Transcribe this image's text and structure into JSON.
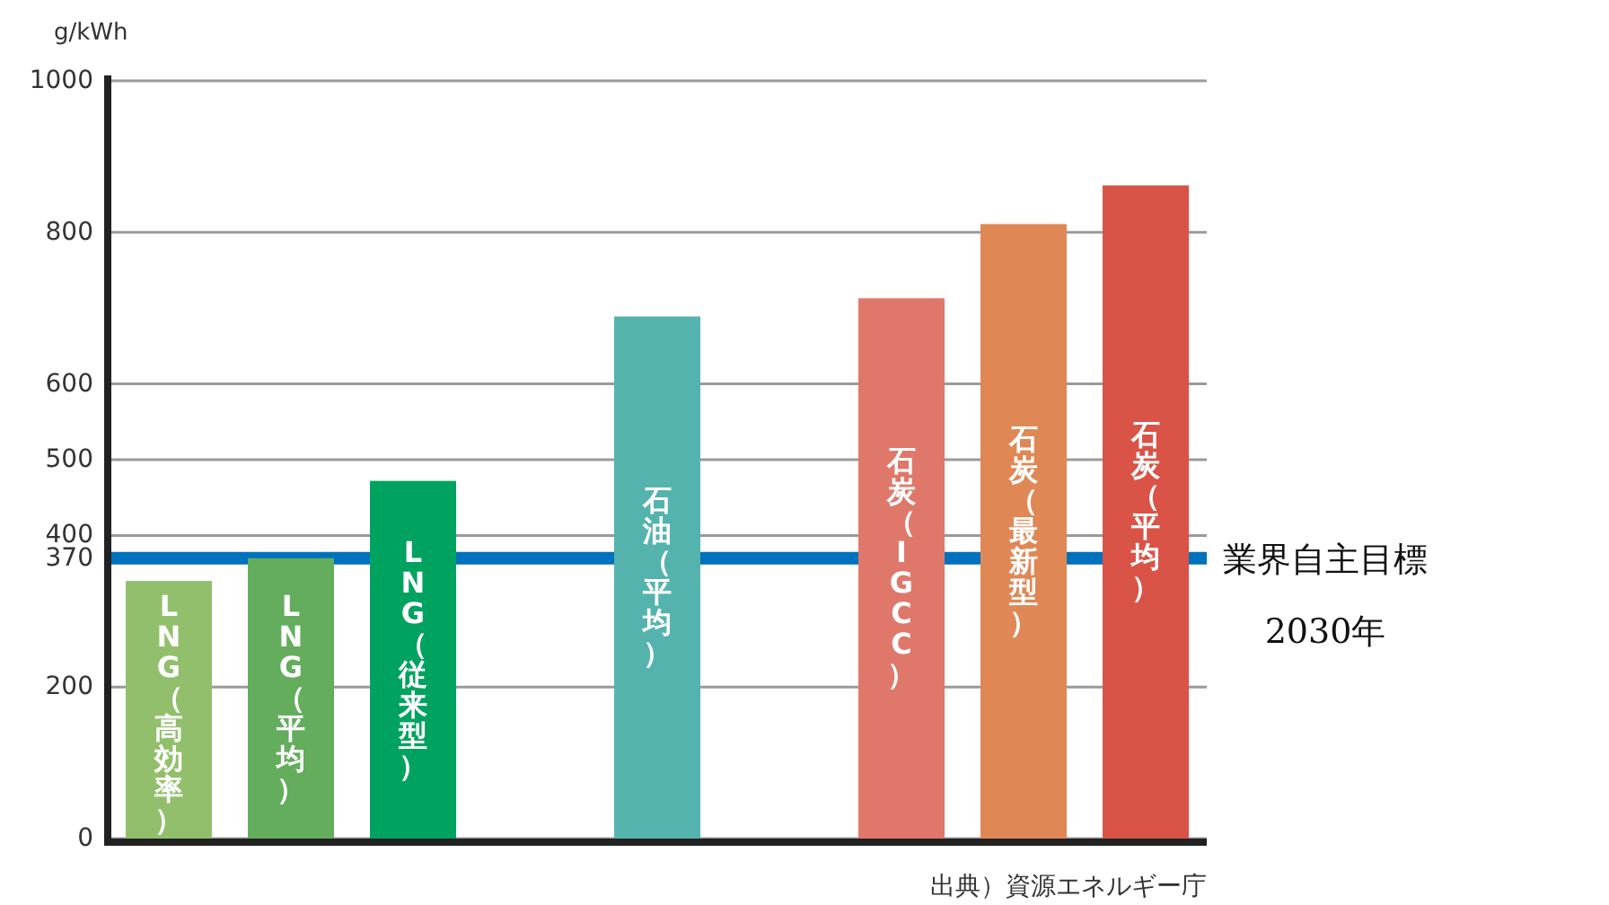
{
  "chart_data": {
    "type": "bar",
    "ylabel": "g/kWh",
    "categories": [
      "LNG（高効率）",
      "LNG（平均）",
      "LNG（従来型）",
      null,
      "石油（平均）",
      null,
      "石炭（IGCC）",
      "石炭（最新型）",
      "石炭（平均）"
    ],
    "values": [
      340,
      370,
      472,
      null,
      689,
      null,
      713,
      811,
      862
    ],
    "colors": [
      "#92bf6b",
      "#63ad5d",
      "#00a260",
      null,
      "#55b3ae",
      null,
      "#df786b",
      "#df8855",
      "#d95346"
    ],
    "ylim": [
      0,
      1000
    ],
    "yticks": [
      0,
      200,
      370,
      400,
      500,
      600,
      800,
      1000
    ],
    "grid": "y",
    "ref_lines": [
      {
        "axis": "y",
        "value": 370,
        "label": "業界自主目標\n2030年",
        "color": "#0071bc"
      }
    ],
    "annotations": [
      "出典）資源エネルギー庁"
    ]
  }
}
